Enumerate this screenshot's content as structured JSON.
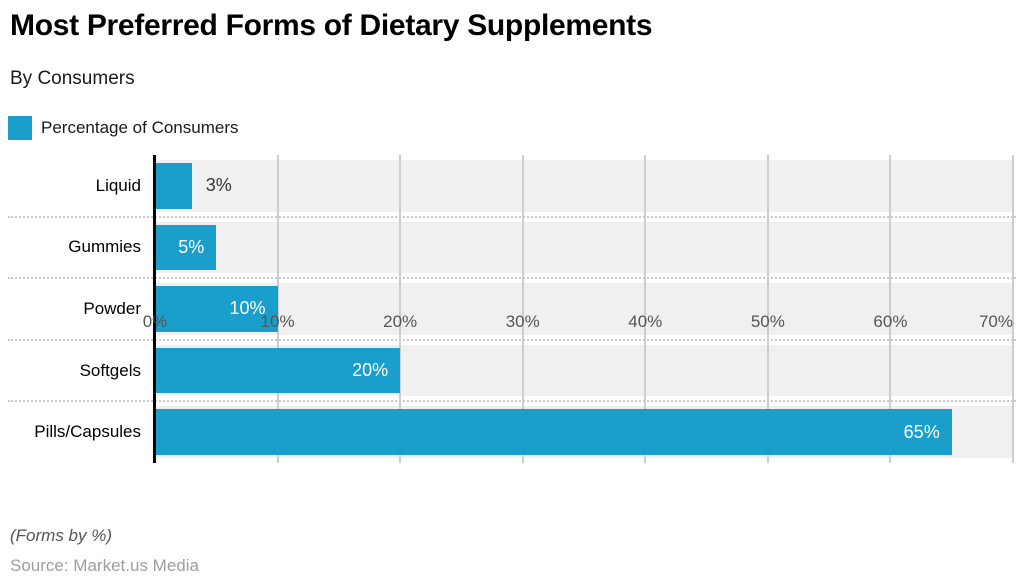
{
  "header": {
    "title": "Most Preferred Forms of Dietary Supplements",
    "subtitle": "By Consumers",
    "legend": {
      "label": "Percentage of Consumers"
    }
  },
  "chart_data": {
    "type": "bar",
    "orientation": "horizontal",
    "title": "Most Preferred Forms of Dietary Supplements",
    "subtitle": "By Consumers",
    "series_name": "Percentage of Consumers",
    "categories": [
      "Liquid",
      "Gummies",
      "Powder",
      "Softgels",
      "Pills/Capsules"
    ],
    "values": [
      3,
      5,
      10,
      20,
      65
    ],
    "value_labels": [
      "3%",
      "5%",
      "10%",
      "20%",
      "65%"
    ],
    "label_inside": [
      false,
      true,
      true,
      true,
      true
    ],
    "x_ticks": [
      "0%",
      "10%",
      "20%",
      "30%",
      "40%",
      "50%",
      "60%",
      "70%"
    ],
    "xlim": [
      0,
      70
    ],
    "xlabel": "",
    "ylabel": "",
    "grid": true,
    "legend_position": "top-left",
    "bar_color": "#1a9ecb",
    "track_color": "#f0f0f0",
    "grid_color": "#cdcdcd",
    "separator_color": "#c9c9c9"
  },
  "footer": {
    "note": "(Forms by %)",
    "source": "Source: Market.us Media"
  }
}
